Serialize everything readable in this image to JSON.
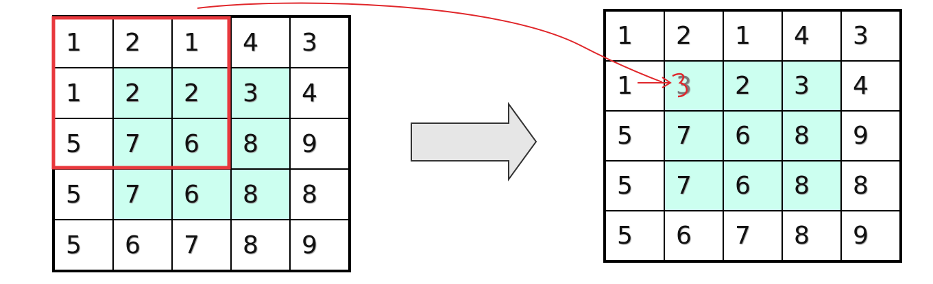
{
  "input_grid": {
    "rows": [
      [
        "1",
        "2",
        "1",
        "4",
        "3"
      ],
      [
        "1",
        "2",
        "2",
        "3",
        "4"
      ],
      [
        "5",
        "7",
        "6",
        "8",
        "9"
      ],
      [
        "5",
        "7",
        "6",
        "8",
        "8"
      ],
      [
        "5",
        "6",
        "7",
        "8",
        "9"
      ]
    ],
    "highlight": [
      [
        1,
        1
      ],
      [
        1,
        2
      ],
      [
        1,
        3
      ],
      [
        2,
        1
      ],
      [
        2,
        2
      ],
      [
        2,
        3
      ],
      [
        3,
        1
      ],
      [
        3,
        2
      ],
      [
        3,
        3
      ]
    ]
  },
  "output_grid": {
    "rows": [
      [
        "1",
        "2",
        "1",
        "4",
        "3"
      ],
      [
        "1",
        "3",
        "2",
        "3",
        "4"
      ],
      [
        "5",
        "7",
        "6",
        "8",
        "9"
      ],
      [
        "5",
        "7",
        "6",
        "8",
        "8"
      ],
      [
        "5",
        "6",
        "7",
        "8",
        "9"
      ]
    ],
    "highlight": [
      [
        1,
        1
      ],
      [
        1,
        2
      ],
      [
        1,
        3
      ],
      [
        2,
        1
      ],
      [
        2,
        2
      ],
      [
        2,
        3
      ],
      [
        3,
        1
      ],
      [
        3,
        2
      ],
      [
        3,
        3
      ]
    ]
  },
  "colors": {
    "highlight": "#ccfff0",
    "window_outline": "#e8383d",
    "annotation": "#e0262a",
    "arrow_fill": "#e6e6e6",
    "arrow_stroke": "#333333"
  },
  "icons": {
    "transform_arrow": "right-arrow-icon"
  }
}
